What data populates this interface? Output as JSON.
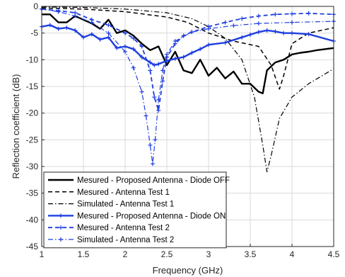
{
  "chart_data": {
    "type": "line",
    "xlabel": "Frequency (GHz)",
    "ylabel": "Reflection coefficient (dB)",
    "xlim": [
      1,
      4.5
    ],
    "ylim": [
      -45,
      0
    ],
    "xticks": [
      1,
      1.5,
      2,
      2.5,
      3,
      3.5,
      4,
      4.5
    ],
    "xtick_labels": [
      "1",
      "1.5",
      "2",
      "2.5",
      "3",
      "3.5",
      "4",
      "4.5"
    ],
    "yticks": [
      0,
      -5,
      -10,
      -15,
      -20,
      -25,
      -30,
      -35,
      -40,
      -45
    ],
    "ytick_labels": [
      "0",
      "-5",
      "-10",
      "-15",
      "-20",
      "-25",
      "-30",
      "-35",
      "-40",
      "-45"
    ],
    "grid": true,
    "legend_position": "bottom-left",
    "series": [
      {
        "name": "Mesured - Proposed Antenna - Diode OFF",
        "color": "#000000",
        "style": "solid",
        "width": 2.4,
        "marker": "none",
        "x": [
          1.0,
          1.1,
          1.2,
          1.3,
          1.4,
          1.5,
          1.6,
          1.7,
          1.8,
          1.9,
          2.0,
          2.1,
          2.2,
          2.3,
          2.4,
          2.5,
          2.6,
          2.7,
          2.8,
          2.9,
          3.0,
          3.1,
          3.2,
          3.3,
          3.4,
          3.5,
          3.6,
          3.65,
          3.7,
          3.8,
          3.9,
          4.0,
          4.1,
          4.2,
          4.3,
          4.4,
          4.5
        ],
        "y": [
          -1.5,
          -1.5,
          -3.0,
          -3.0,
          -1.8,
          -2.5,
          -3.2,
          -4.2,
          -2.5,
          -5.0,
          -4.5,
          -5.5,
          -7.0,
          -8.2,
          -7.5,
          -11.0,
          -8.5,
          -12.0,
          -12.5,
          -10.0,
          -13.0,
          -11.5,
          -13.5,
          -12.2,
          -14.5,
          -14.5,
          -16.0,
          -16.3,
          -12.0,
          -10.5,
          -10.0,
          -9.0,
          -8.7,
          -8.5,
          -8.2,
          -8.0,
          -7.8
        ]
      },
      {
        "name": "Mesured - Antenna Test 1",
        "color": "#000000",
        "style": "dashed",
        "width": 1.5,
        "marker": "none",
        "x": [
          1.0,
          1.5,
          2.0,
          2.5,
          2.75,
          3.0,
          3.3,
          3.6,
          3.75,
          3.85,
          3.9,
          4.0,
          4.2,
          4.5
        ],
        "y": [
          -0.3,
          -0.5,
          -1.0,
          -2.0,
          -3.0,
          -5.0,
          -6.5,
          -7.5,
          -11.0,
          -15.5,
          -13.0,
          -7.0,
          -5.0,
          -4.0
        ]
      },
      {
        "name": "Simulated - Antenna Test 1",
        "color": "#000000",
        "style": "dashdot",
        "width": 1.2,
        "marker": "none",
        "x": [
          1.0,
          1.5,
          2.0,
          2.5,
          2.8,
          3.0,
          3.2,
          3.4,
          3.55,
          3.65,
          3.7,
          3.75,
          3.85,
          4.0,
          4.2,
          4.5
        ],
        "y": [
          -0.1,
          -0.2,
          -0.5,
          -1.2,
          -2.3,
          -3.8,
          -6.0,
          -10.0,
          -17.0,
          -26.0,
          -31.0,
          -28.0,
          -21.0,
          -17.0,
          -14.5,
          -11.7
        ]
      },
      {
        "name": "Mesured - Proposed Antenna - Diode ON",
        "color": "#1f3ee0",
        "style": "solid",
        "width": 2.4,
        "marker": "plus",
        "x": [
          1.0,
          1.1,
          1.2,
          1.3,
          1.4,
          1.5,
          1.6,
          1.7,
          1.8,
          1.9,
          2.0,
          2.1,
          2.2,
          2.3,
          2.35,
          2.4,
          2.5,
          2.6,
          2.7,
          2.8,
          2.9,
          3.0,
          3.2,
          3.4,
          3.5,
          3.6,
          3.7,
          3.8,
          3.9,
          4.0,
          4.2,
          4.5
        ],
        "y": [
          -3.8,
          -3.5,
          -4.2,
          -4.0,
          -4.5,
          -5.8,
          -5.2,
          -6.2,
          -5.8,
          -7.8,
          -7.5,
          -8.0,
          -9.5,
          -10.5,
          -11.0,
          -10.8,
          -10.2,
          -9.8,
          -9.5,
          -8.7,
          -8.0,
          -7.2,
          -6.8,
          -5.8,
          -5.3,
          -4.8,
          -4.5,
          -4.7,
          -5.0,
          -5.0,
          -5.2,
          -6.5
        ]
      },
      {
        "name": "Mesured - Antenna Test 2",
        "color": "#1f3ee0",
        "style": "dashed",
        "width": 1.8,
        "marker": "plus",
        "x": [
          1.0,
          1.2,
          1.4,
          1.6,
          1.8,
          2.0,
          2.1,
          2.2,
          2.3,
          2.35,
          2.4,
          2.45,
          2.5,
          2.6,
          2.7,
          2.8,
          3.0,
          3.2,
          3.4,
          3.6,
          3.8,
          4.0,
          4.2,
          4.5
        ],
        "y": [
          -0.5,
          -0.8,
          -1.2,
          -2.5,
          -3.5,
          -5.0,
          -6.0,
          -7.5,
          -12.0,
          -17.0,
          -19.5,
          -14.0,
          -9.5,
          -7.0,
          -5.5,
          -4.8,
          -3.8,
          -3.0,
          -2.3,
          -1.8,
          -1.5,
          -1.4,
          -1.3,
          -1.5
        ]
      },
      {
        "name": "Simulated - Antenna Test 2",
        "color": "#1f3ee0",
        "style": "dashdot",
        "width": 1.2,
        "marker": "plus",
        "x": [
          1.0,
          1.2,
          1.4,
          1.6,
          1.8,
          2.0,
          2.1,
          2.2,
          2.25,
          2.3,
          2.33,
          2.36,
          2.4,
          2.45,
          2.5,
          2.6,
          2.8,
          3.0,
          3.3,
          3.6,
          4.0,
          4.5
        ],
        "y": [
          -0.5,
          -1.0,
          -1.8,
          -3.0,
          -5.0,
          -8.5,
          -11.5,
          -16.0,
          -20.5,
          -26.0,
          -29.5,
          -25.0,
          -17.5,
          -12.0,
          -9.0,
          -6.5,
          -4.8,
          -4.2,
          -3.6,
          -3.2,
          -3.0,
          -2.8
        ]
      }
    ]
  }
}
